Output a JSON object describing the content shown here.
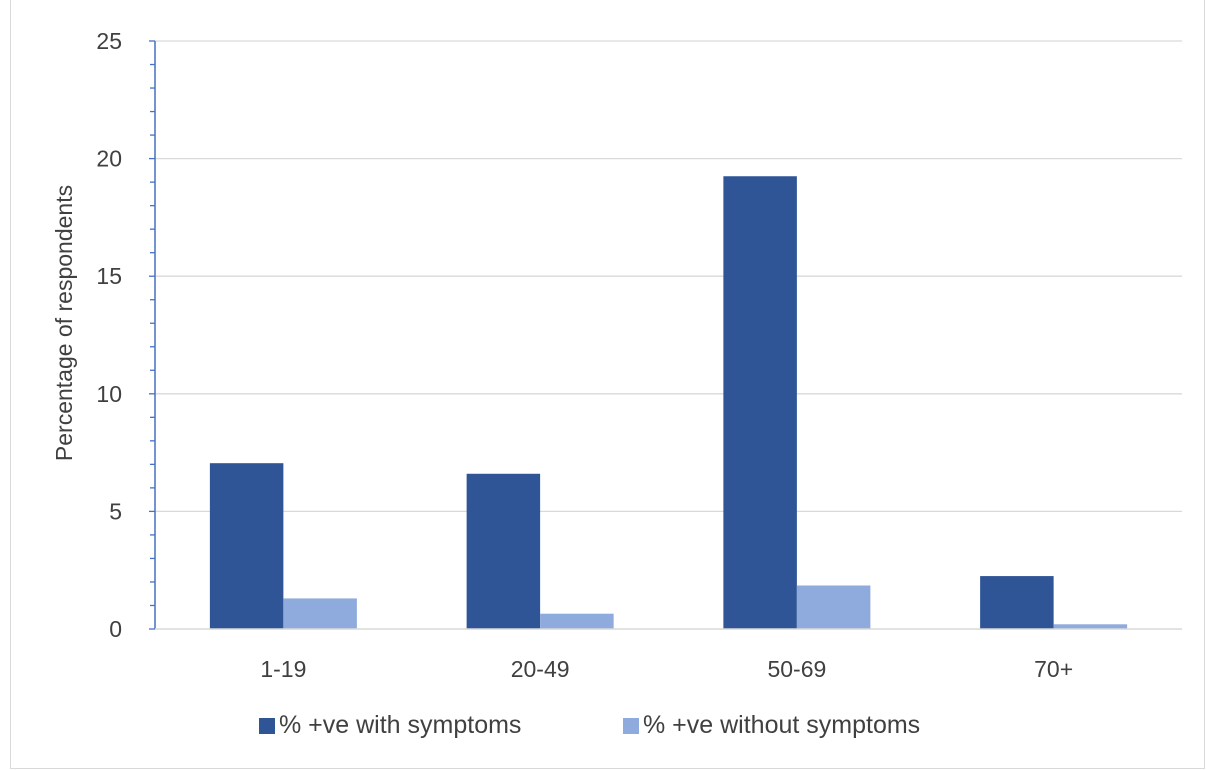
{
  "chart_data": {
    "type": "bar",
    "title": "",
    "xlabel": "",
    "ylabel": "Percentage of respondents",
    "categories": [
      "1-19",
      "20-49",
      "50-69",
      "70+"
    ],
    "series": [
      {
        "name": "% +ve with symptoms",
        "color": "#2F5597",
        "values": [
          7.05,
          6.6,
          19.25,
          2.25
        ]
      },
      {
        "name": "% +ve without symptoms",
        "color": "#8FAADC",
        "values": [
          1.3,
          0.65,
          1.85,
          0.2
        ]
      }
    ],
    "ylim": [
      0,
      25
    ],
    "yticks": [
      0,
      5,
      10,
      15,
      20,
      25
    ],
    "grid": true,
    "legend_position": "bottom",
    "axis_color": "#4472C4",
    "grid_color": "#d9d9d9"
  }
}
